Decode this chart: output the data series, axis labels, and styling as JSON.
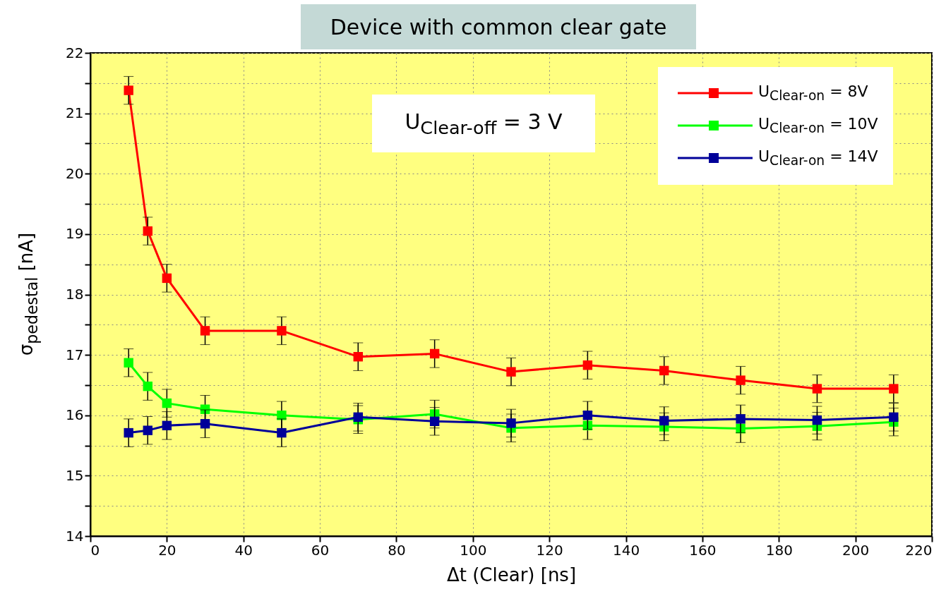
{
  "chart_data": {
    "type": "line",
    "title": "Device with common clear gate",
    "xlabel": "Δt (Clear) [ns]",
    "ylabel": "σ$_{pedestal}$ [nA]",
    "annotations": [
      "U$_{Clear-off}$ = 3 V"
    ],
    "x": [
      10,
      15,
      20,
      30,
      50,
      70,
      90,
      110,
      130,
      150,
      170,
      190,
      210
    ],
    "series": [
      {
        "name": "U$_{Clear-on}$ = 8V",
        "color": "#ff0000",
        "values": [
          21.38,
          19.05,
          18.27,
          17.4,
          17.4,
          16.97,
          17.02,
          16.72,
          16.83,
          16.74,
          16.58,
          16.44,
          16.44
        ],
        "errors": [
          0.23,
          0.23,
          0.23,
          0.23,
          0.23,
          0.23,
          0.23,
          0.23,
          0.23,
          0.23,
          0.23,
          0.23,
          0.23
        ]
      },
      {
        "name": "U$_{Clear-on}$ = 10V",
        "color": "#00ff00",
        "values": [
          16.87,
          16.48,
          16.2,
          16.1,
          16.0,
          15.93,
          16.02,
          15.79,
          15.83,
          15.81,
          15.78,
          15.82,
          15.89
        ],
        "errors": [
          0.23,
          0.23,
          0.23,
          0.23,
          0.23,
          0.23,
          0.23,
          0.23,
          0.23,
          0.23,
          0.23,
          0.23,
          0.23
        ]
      },
      {
        "name": "U$_{Clear-on}$ = 14V",
        "color": "#000099",
        "values": [
          15.71,
          15.75,
          15.83,
          15.86,
          15.71,
          15.97,
          15.9,
          15.87,
          16.0,
          15.91,
          15.94,
          15.92,
          15.97
        ],
        "errors": [
          0.23,
          0.23,
          0.23,
          0.23,
          0.23,
          0.23,
          0.23,
          0.23,
          0.23,
          0.23,
          0.23,
          0.23,
          0.23
        ]
      }
    ],
    "xlim": [
      0,
      220
    ],
    "xticks": [
      0,
      20,
      40,
      60,
      80,
      100,
      120,
      140,
      160,
      180,
      200,
      220
    ],
    "ylim": [
      14,
      22
    ],
    "yticks": [
      14,
      {
        "value": 14.5,
        "label": null
      },
      15,
      {
        "value": 15.5,
        "label": null
      },
      16,
      {
        "value": 16.5,
        "label": null
      },
      17,
      {
        "value": 17.5,
        "label": null
      },
      18,
      {
        "value": 18.5,
        "label": null
      },
      19,
      {
        "value": 19.5,
        "label": null
      },
      20,
      {
        "value": 20.5,
        "label": null
      },
      21,
      {
        "value": 21.5,
        "label": null
      },
      22
    ],
    "grid": true,
    "legend": "top right",
    "marker": "square",
    "line_style": "solid"
  }
}
